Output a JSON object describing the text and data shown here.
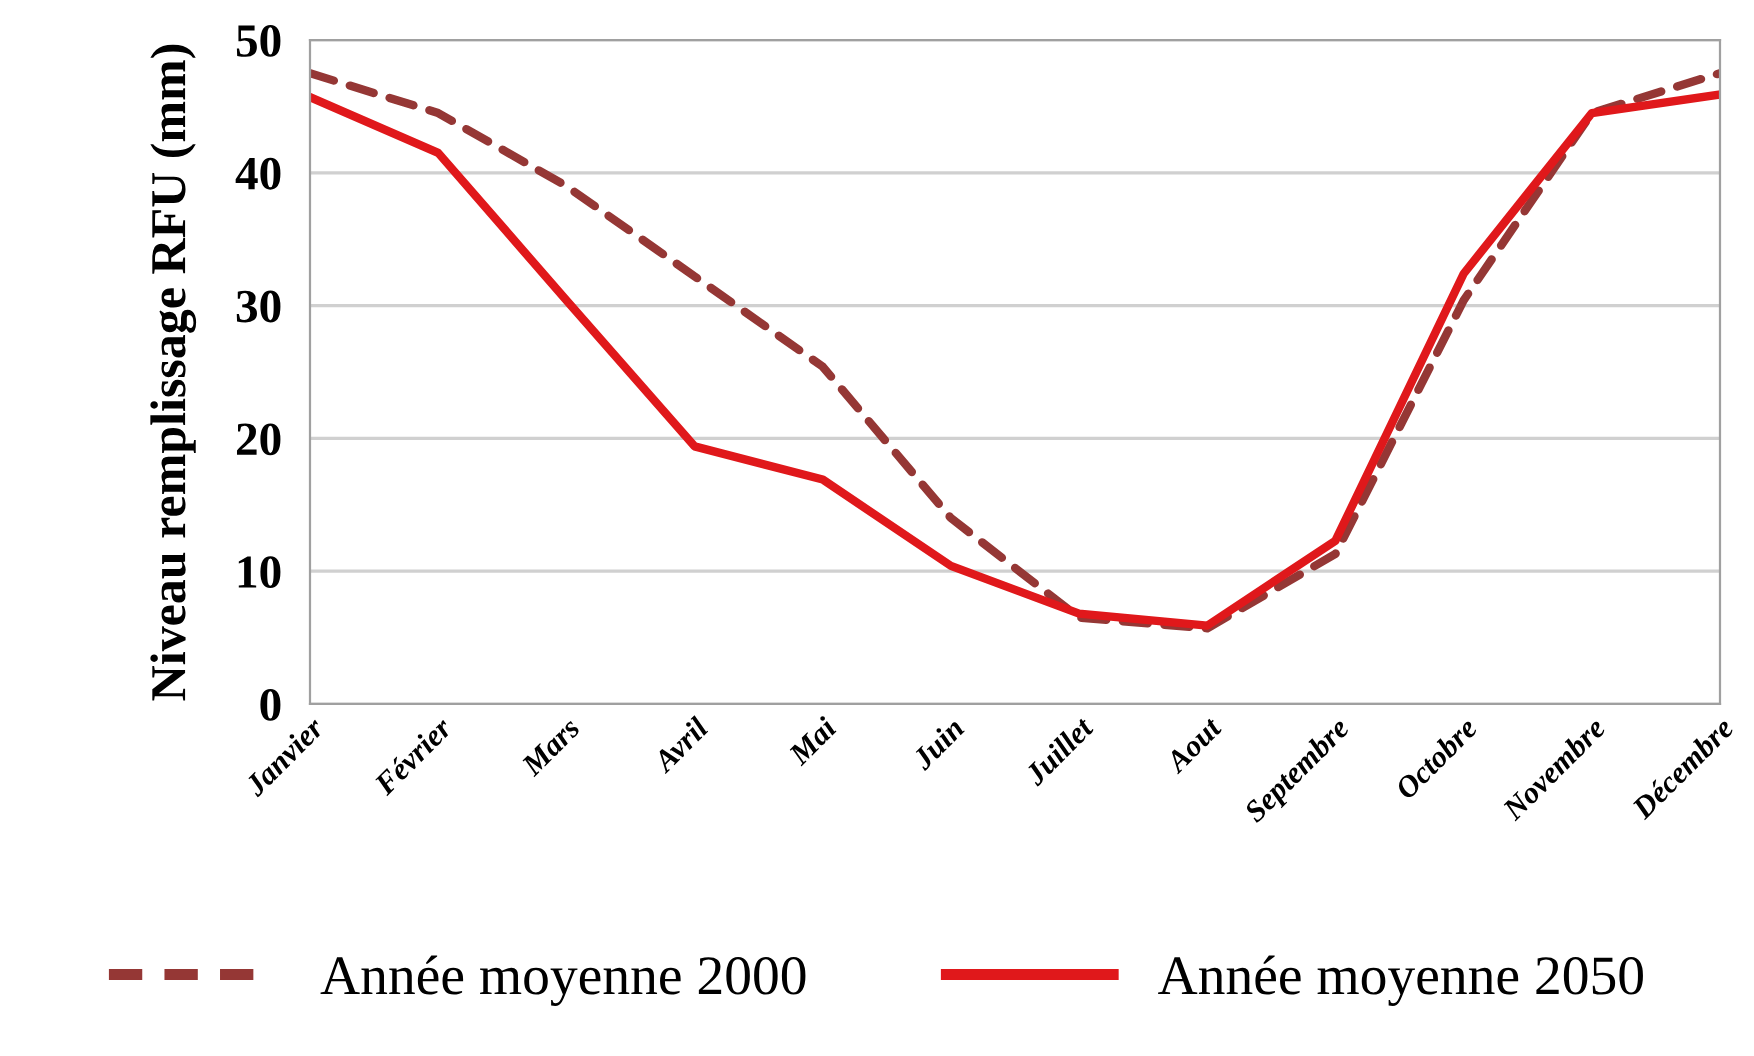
{
  "chart_data": {
    "type": "line",
    "ylabel": "Niveau remplissage RFU (mm)",
    "categories": [
      "Janvier",
      "Février",
      "Mars",
      "Avril",
      "Mai",
      "Juin",
      "Juillet",
      "Aout",
      "Septembre",
      "Octobre",
      "Novembre",
      "Décembre"
    ],
    "series": [
      {
        "name": "Année moyenne 2000",
        "color": "#953735",
        "line_style": "dashed",
        "values": [
          47.5,
          44.5,
          39,
          32.2,
          25.4,
          14,
          6.5,
          5.7,
          11.3,
          30.4,
          44.5,
          47.5
        ]
      },
      {
        "name": "Année moyenne 2050",
        "color": "#e0181b",
        "line_style": "solid",
        "values": [
          45.7,
          41.5,
          30.4,
          19.4,
          16.9,
          10.4,
          6.8,
          5.9,
          12.3,
          32.4,
          44.5,
          45.9
        ]
      }
    ],
    "ylim": [
      0,
      50
    ],
    "yticks": [
      0,
      10,
      20,
      30,
      40,
      50
    ],
    "grid": "y",
    "legend": "bottom",
    "marker": "none"
  }
}
